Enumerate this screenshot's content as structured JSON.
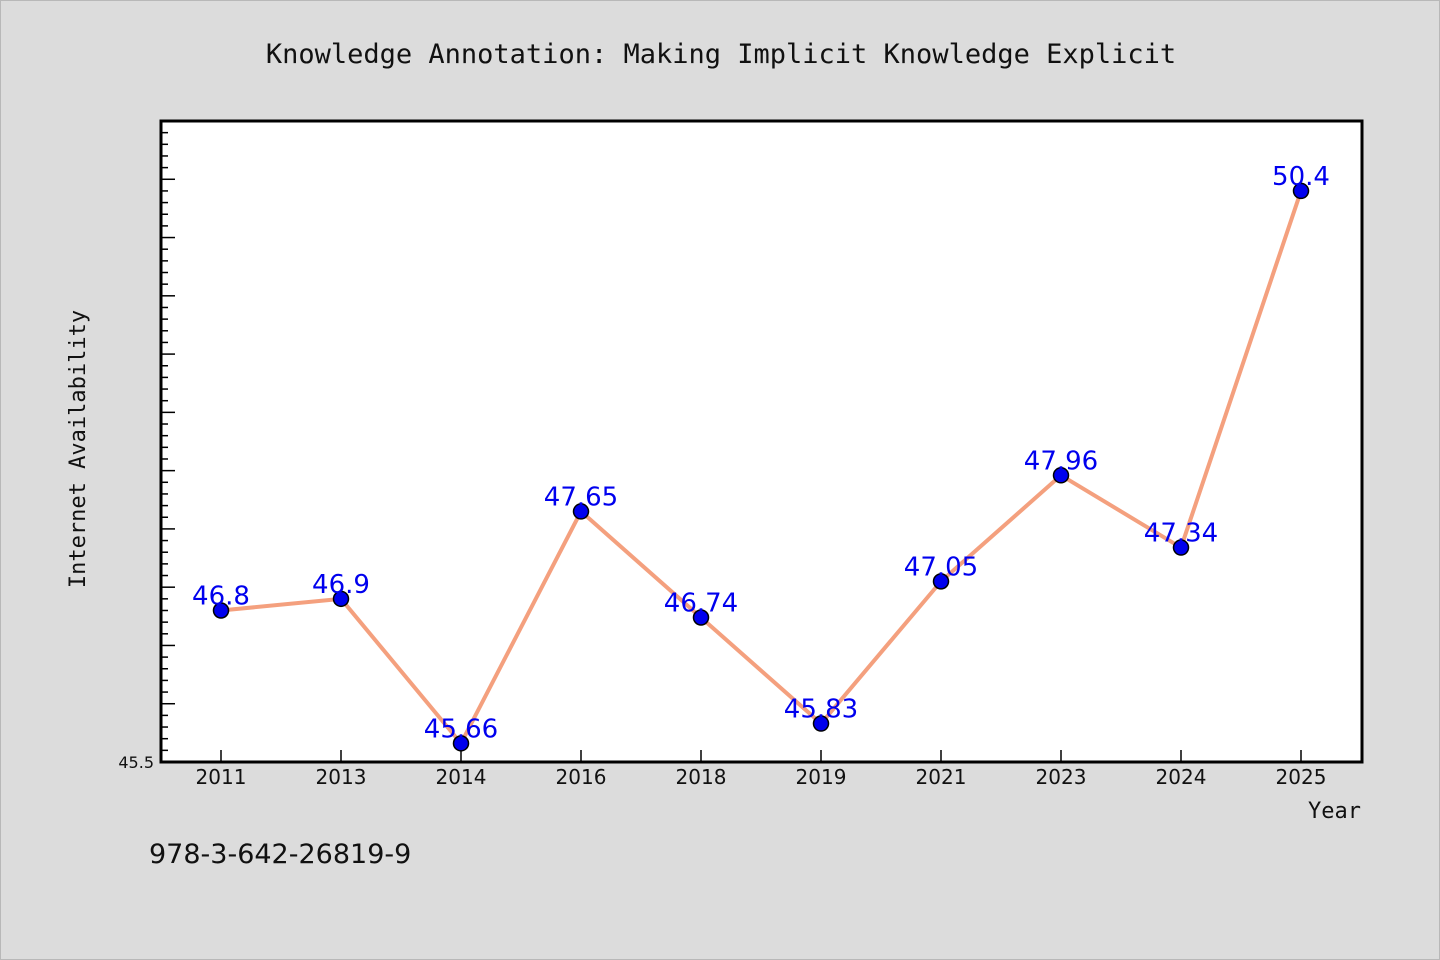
{
  "chart_data": {
    "type": "line",
    "title": "Knowledge Annotation: Making Implicit Knowledge Explicit",
    "xlabel": "Year",
    "ylabel": "Internet Availability",
    "x": [
      "2011",
      "2013",
      "2014",
      "2016",
      "2018",
      "2019",
      "2021",
      "2023",
      "2024",
      "2025"
    ],
    "series": [
      {
        "values": [
          46.8,
          46.9,
          45.66,
          47.65,
          46.74,
          45.83,
          47.05,
          47.96,
          47.34,
          50.4
        ]
      }
    ],
    "data_labels": [
      "46.8",
      "46.9",
      "45.66",
      "47.65",
      "46.74",
      "45.83",
      "47.05",
      "47.96",
      "47.34",
      "50.4"
    ],
    "y_tick_label": "45.5",
    "ylim": [
      45.5,
      51.0
    ],
    "grid": false,
    "legend": "none",
    "colors": {
      "line": "#f4a07e",
      "marker": "#0000ee",
      "marker_edge": "#000000",
      "data_label": "#0000ee",
      "plot_background": "#ffffff",
      "figure_background": "#dcdcdc"
    }
  },
  "footer": {
    "isbn": "978-3-642-26819-9"
  }
}
